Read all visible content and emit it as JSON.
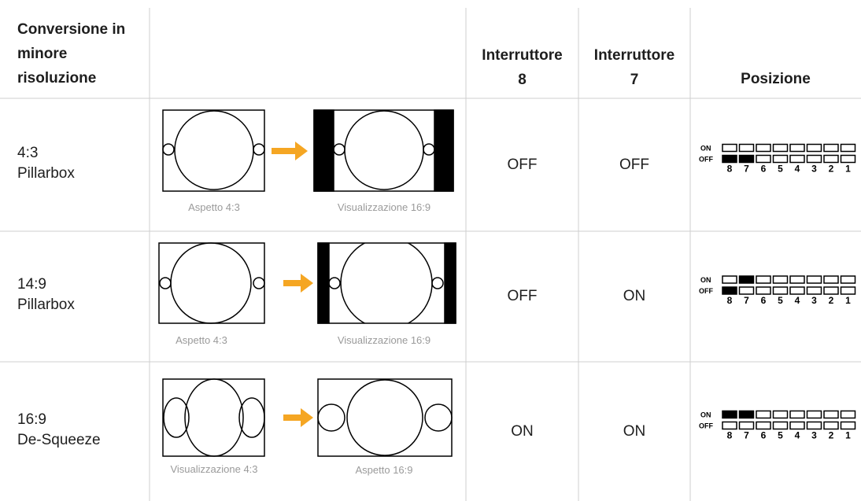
{
  "header": {
    "conversion": "Conversione in minore risoluzione",
    "switch8": "Interruttore 8",
    "switch7": "Interruttore 7",
    "position": "Posizione"
  },
  "dip_labels": {
    "on": "ON",
    "off": "OFF",
    "numbers": [
      8,
      7,
      6,
      5,
      4,
      3,
      2,
      1
    ]
  },
  "rows": [
    {
      "aspect": "4:3",
      "mode": "Pillarbox",
      "caption_left": "Aspetto 4:3",
      "caption_right": "Visualizzazione 16:9",
      "switch8": "OFF",
      "switch7": "OFF"
    },
    {
      "aspect": "14:9",
      "mode": "Pillarbox",
      "caption_left": "Aspetto 4:3",
      "caption_right": "Visualizzazione 16:9",
      "switch8": "OFF",
      "switch7": "ON"
    },
    {
      "aspect": "16:9",
      "mode": "De-Squeeze",
      "caption_left": "Visualizzazione 4:3",
      "caption_right": "Aspetto 16:9",
      "switch8": "ON",
      "switch7": "ON"
    }
  ]
}
